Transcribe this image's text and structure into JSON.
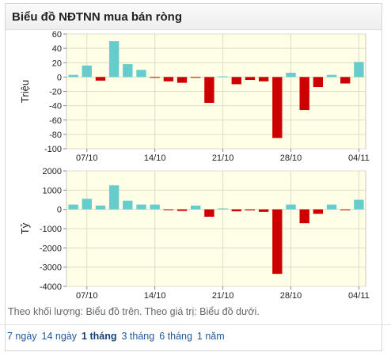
{
  "header": {
    "title": "Biểu đồ NĐTNN mua bán ròng"
  },
  "caption": "Theo khối lượng: Biểu đồ trên. Theo giá trị: Biểu đồ dưới.",
  "ranges": [
    {
      "label": "7 ngày",
      "active": false
    },
    {
      "label": "14 ngày",
      "active": false
    },
    {
      "label": "1 tháng",
      "active": true
    },
    {
      "label": "3 tháng",
      "active": false
    },
    {
      "label": "6 tháng",
      "active": false
    },
    {
      "label": "1 năm",
      "active": false
    }
  ],
  "colors": {
    "positive": "#66cccc",
    "negative": "#cc0000",
    "plot_bg": "#ffffe8",
    "grid": "#dcdcc8"
  },
  "chart_data": [
    {
      "type": "bar",
      "ylabel": "Triệu",
      "ylim": [
        -100,
        60
      ],
      "yticks": [
        60,
        40,
        20,
        0,
        -20,
        -40,
        -60,
        -80,
        -100
      ],
      "xtick_labels": [
        {
          "index": 1,
          "label": "07/10"
        },
        {
          "index": 6,
          "label": "14/10"
        },
        {
          "index": 11,
          "label": "21/10"
        },
        {
          "index": 16,
          "label": "28/10"
        },
        {
          "index": 21,
          "label": "04/11"
        }
      ],
      "values": [
        3,
        16,
        -5,
        50,
        18,
        10,
        -1,
        -6,
        -8,
        -1,
        -36,
        1,
        -10,
        -4,
        -6,
        -85,
        6,
        -46,
        -14,
        3,
        -9,
        21
      ]
    },
    {
      "type": "bar",
      "ylabel": "Tỷ",
      "ylim": [
        -4000,
        2000
      ],
      "yticks": [
        2000,
        1000,
        0,
        -1000,
        -2000,
        -3000,
        -4000
      ],
      "xtick_labels": [
        {
          "index": 1,
          "label": "07/10"
        },
        {
          "index": 6,
          "label": "14/10"
        },
        {
          "index": 11,
          "label": "21/10"
        },
        {
          "index": 16,
          "label": "28/10"
        },
        {
          "index": 21,
          "label": "04/11"
        }
      ],
      "values": [
        250,
        550,
        200,
        1250,
        450,
        250,
        250,
        -30,
        -80,
        200,
        -380,
        50,
        -100,
        -50,
        -130,
        -3350,
        250,
        -720,
        -230,
        250,
        -40,
        500
      ]
    }
  ]
}
